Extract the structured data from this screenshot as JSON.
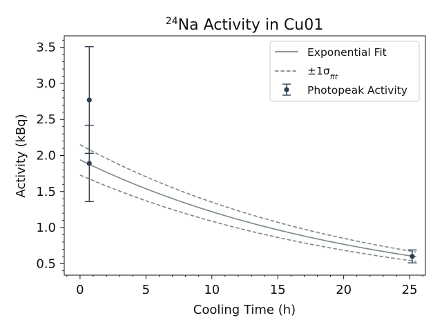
{
  "chart_data": {
    "type": "scatter",
    "title": {
      "superscript": "24",
      "text": "Na Activity in Cu01"
    },
    "xlabel": "Cooling Time (h)",
    "ylabel": "Activity (kBq)",
    "xlim": [
      -1.2,
      26.2
    ],
    "ylim": [
      0.34,
      3.66
    ],
    "xticks": [
      0,
      5,
      10,
      15,
      20,
      25
    ],
    "yticks": [
      0.5,
      1.0,
      1.5,
      2.0,
      2.5,
      3.0,
      3.5
    ],
    "xtick_labels": [
      "0",
      "5",
      "10",
      "15",
      "20",
      "25"
    ],
    "ytick_labels": [
      "0.5",
      "1.0",
      "1.5",
      "2.0",
      "2.5",
      "3.0",
      "3.5"
    ],
    "grid": false,
    "legend_position": "top-right",
    "colors": {
      "fit": "#7f8c8d",
      "points": "#2c3e50"
    },
    "legend": [
      {
        "label": "Exponential Fit",
        "style": "solid"
      },
      {
        "label": "±1σ",
        "subscript": "fit",
        "style": "dashed"
      },
      {
        "label": "Photopeak Activity",
        "style": "errorbar"
      }
    ],
    "series": [
      {
        "name": "Photopeak Activity",
        "style": "errorbar",
        "points": [
          {
            "x": 0.7,
            "y": 2.77,
            "yerr": 0.74
          },
          {
            "x": 0.7,
            "y": 1.89,
            "yerr": 0.53
          },
          {
            "x": 25.2,
            "y": 0.6,
            "yerr": 0.09
          }
        ]
      },
      {
        "name": "Exponential Fit",
        "style": "solid",
        "model": {
          "A0": 1.94,
          "half_life_h": 14.96
        },
        "x_range": [
          0,
          25.5
        ]
      },
      {
        "name": "±1σfit",
        "style": "dashed",
        "bands": [
          {
            "A0": 2.15,
            "half_life_h": 14.96
          },
          {
            "A0": 1.73,
            "half_life_h": 14.96
          }
        ],
        "x_range": [
          0,
          25.5
        ]
      }
    ]
  }
}
